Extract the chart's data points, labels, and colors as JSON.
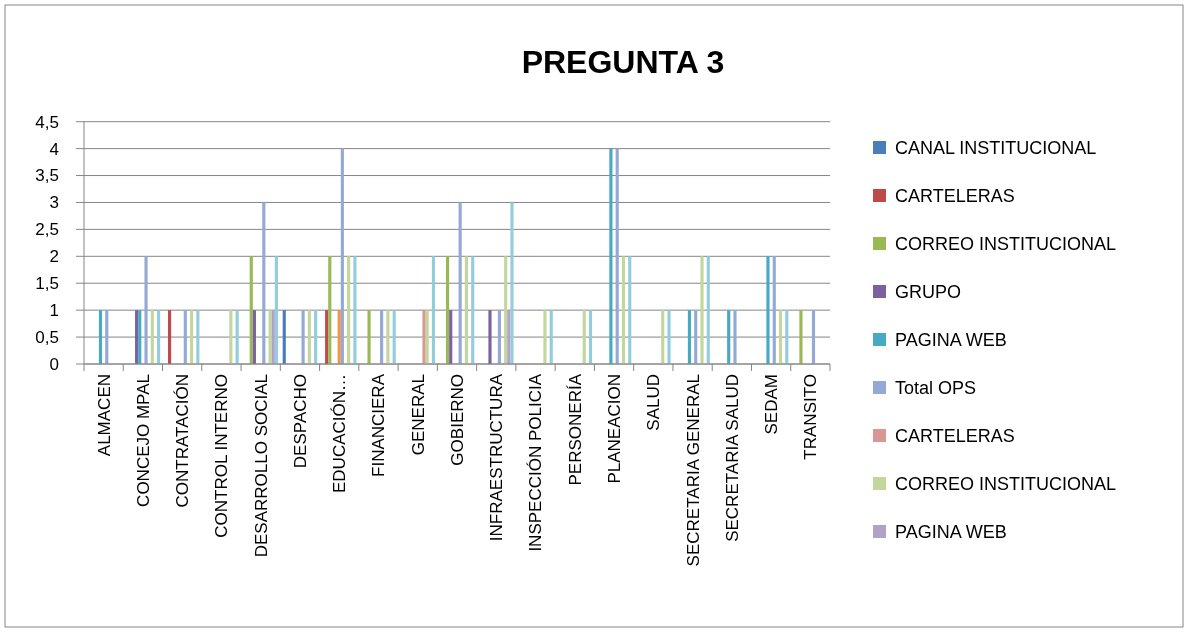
{
  "chart_data": {
    "type": "bar",
    "title": "PREGUNTA 3",
    "categories": [
      "ALMACEN",
      "CONCEJO MPAL",
      "CONTRATACIÓN",
      "CONTROL INTERNO",
      "DESARROLLO SOCIAL",
      "DESPACHO",
      "EDUCACIÓN…",
      "FINANCIERA",
      "GENERAL",
      "GOBIERNO",
      "INFRAESTRUCTURA",
      "INSPECCIÓN POLICIA",
      "PERSONERÍA",
      "PLANEACION",
      "SALUD",
      "SECRETARIA GENERAL",
      "SECRETARIA SALUD",
      "SEDAM",
      "TRANSITO"
    ],
    "series": [
      {
        "name": "CANAL INSTITUCIONAL",
        "color": "#4a7ebb",
        "values": [
          null,
          null,
          null,
          null,
          null,
          1,
          null,
          null,
          null,
          null,
          null,
          null,
          null,
          null,
          null,
          null,
          null,
          null,
          null
        ]
      },
      {
        "name": "CARTELERAS",
        "color": "#be4b48",
        "values": [
          null,
          null,
          1,
          null,
          null,
          null,
          1,
          null,
          null,
          null,
          null,
          null,
          null,
          null,
          null,
          null,
          null,
          null,
          null
        ]
      },
      {
        "name": "CORREO INSTITUCIONAL",
        "color": "#98b954",
        "values": [
          null,
          null,
          null,
          null,
          2,
          null,
          2,
          1,
          null,
          2,
          null,
          null,
          null,
          null,
          null,
          null,
          null,
          null,
          1
        ]
      },
      {
        "name": "GRUPO",
        "color": "#7d60a0",
        "values": [
          null,
          1,
          null,
          null,
          1,
          null,
          null,
          null,
          null,
          1,
          1,
          null,
          null,
          null,
          null,
          null,
          null,
          null,
          null
        ]
      },
      {
        "name": "PAGINA WEB",
        "color": "#46aac5",
        "values": [
          1,
          1,
          null,
          null,
          null,
          null,
          null,
          null,
          null,
          null,
          null,
          null,
          null,
          4,
          null,
          1,
          1,
          2,
          null
        ]
      },
      {
        "color": "#f69240",
        "values": [
          null,
          null,
          null,
          null,
          null,
          null,
          1,
          null,
          null,
          null,
          null,
          null,
          null,
          null,
          null,
          null,
          null,
          null,
          null
        ]
      },
      {
        "name": "Total OPS",
        "color": "#94a9d5",
        "values": [
          1,
          2,
          1,
          null,
          3,
          1,
          4,
          1,
          null,
          3,
          1,
          null,
          null,
          4,
          null,
          1,
          1,
          2,
          1
        ]
      },
      {
        "name": "CARTELERAS",
        "color": "#d99694",
        "values": [
          null,
          null,
          null,
          null,
          null,
          null,
          null,
          null,
          1,
          null,
          null,
          null,
          null,
          null,
          null,
          null,
          null,
          null,
          null
        ]
      },
      {
        "name": "CORREO INSTITUCIONAL",
        "color": "#c3d69b",
        "values": [
          null,
          1,
          1,
          1,
          1,
          1,
          2,
          1,
          1,
          2,
          2,
          1,
          1,
          2,
          1,
          2,
          null,
          1,
          null
        ]
      },
      {
        "name": "PAGINA WEB",
        "color": "#b3a2c7",
        "values": [
          null,
          null,
          null,
          null,
          1,
          null,
          null,
          null,
          null,
          null,
          1,
          null,
          null,
          null,
          null,
          null,
          null,
          null,
          null
        ]
      },
      {
        "color": "#93cddd",
        "values": [
          null,
          1,
          1,
          1,
          2,
          1,
          2,
          1,
          2,
          2,
          3,
          1,
          1,
          2,
          1,
          2,
          null,
          1,
          null
        ]
      }
    ],
    "ylim": [
      0,
      4.5
    ],
    "yticks": [
      0,
      {
        "value": 0.5,
        "label": "0,5"
      },
      1,
      {
        "value": 1.5,
        "label": "1,5"
      },
      2,
      {
        "value": 2.5,
        "label": "2,5"
      },
      3,
      {
        "value": 3.5,
        "label": "3,5"
      },
      4,
      {
        "value": 4.5,
        "label": "4,5"
      }
    ],
    "grid": "y",
    "legend": "right"
  }
}
